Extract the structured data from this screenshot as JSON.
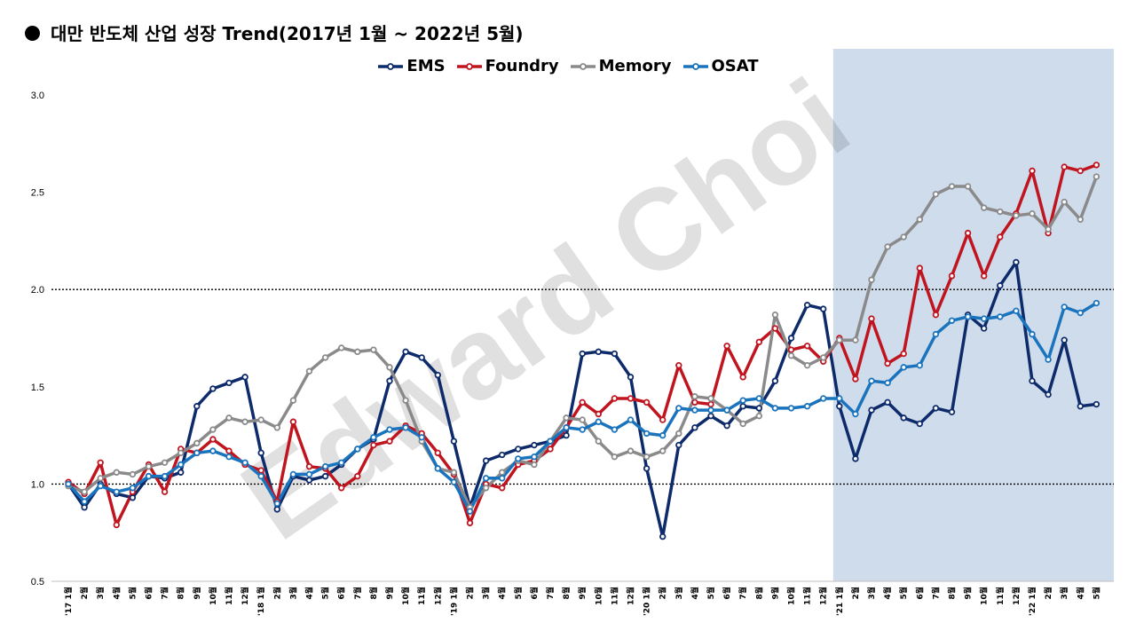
{
  "title": "대만 반도체 산업 성장 Trend(2017년 1월 ~ 2022년 5월)",
  "watermark": "Edward Choi",
  "colors": {
    "EMS": "#0d2a6b",
    "Foundry": "#c0141f",
    "Memory": "#8a8a8a",
    "OSAT": "#1a74bd",
    "highlight": "#cfdcec"
  },
  "chart_data": {
    "type": "line",
    "ylim": [
      0.5,
      3.0
    ],
    "yticks": [
      "3.0",
      "2.5",
      "2.0",
      "1.5",
      "1.0",
      "0.5"
    ],
    "reference_lines": [
      1.0,
      2.0
    ],
    "highlight_region": {
      "from": "'21 1월",
      "to": "'22 5월"
    },
    "legend_position": "top-center",
    "categories": [
      "'17 1월",
      "2월",
      "3월",
      "4월",
      "5월",
      "6월",
      "7월",
      "8월",
      "9월",
      "10월",
      "11월",
      "12월",
      "'18 1월",
      "2월",
      "3월",
      "4월",
      "5월",
      "6월",
      "7월",
      "8월",
      "9월",
      "10월",
      "11월",
      "12월",
      "'19 1월",
      "2월",
      "3월",
      "4월",
      "5월",
      "6월",
      "7월",
      "8월",
      "9월",
      "10월",
      "11월",
      "12월",
      "'20 1월",
      "2월",
      "3월",
      "4월",
      "5월",
      "6월",
      "7월",
      "8월",
      "9월",
      "10월",
      "11월",
      "12월",
      "'21 1월",
      "2월",
      "3월",
      "4월",
      "5월",
      "6월",
      "7월",
      "8월",
      "9월",
      "10월",
      "11월",
      "12월",
      "'22 1월",
      "2월",
      "3월",
      "4월",
      "5월"
    ],
    "series": [
      {
        "name": "EMS",
        "values": [
          1.0,
          0.88,
          1.0,
          0.95,
          0.93,
          1.04,
          1.03,
          1.06,
          1.4,
          1.49,
          1.52,
          1.55,
          1.16,
          0.87,
          1.04,
          1.02,
          1.04,
          1.1,
          1.18,
          1.23,
          1.53,
          1.68,
          1.65,
          1.56,
          1.22,
          0.88,
          1.12,
          1.15,
          1.18,
          1.2,
          1.22,
          1.25,
          1.67,
          1.68,
          1.67,
          1.55,
          1.08,
          0.73,
          1.2,
          1.29,
          1.35,
          1.3,
          1.4,
          1.39,
          1.53,
          1.75,
          1.92,
          1.9,
          1.4,
          1.13,
          1.38,
          1.42,
          1.34,
          1.31,
          1.39,
          1.37,
          1.87,
          1.8,
          2.02,
          2.14,
          1.53,
          1.46,
          1.74,
          1.4,
          1.41
        ]
      },
      {
        "name": "Foundry",
        "values": [
          1.01,
          0.95,
          1.11,
          0.79,
          0.96,
          1.1,
          0.96,
          1.18,
          1.16,
          1.23,
          1.17,
          1.1,
          1.07,
          0.91,
          1.32,
          1.09,
          1.08,
          0.98,
          1.04,
          1.2,
          1.22,
          1.3,
          1.26,
          1.16,
          1.05,
          0.8,
          1.0,
          0.98,
          1.1,
          1.12,
          1.18,
          1.29,
          1.42,
          1.36,
          1.44,
          1.44,
          1.42,
          1.33,
          1.61,
          1.42,
          1.41,
          1.71,
          1.55,
          1.73,
          1.8,
          1.69,
          1.71,
          1.63,
          1.75,
          1.54,
          1.85,
          1.62,
          1.67,
          2.11,
          1.87,
          2.07,
          2.29,
          2.07,
          2.27,
          2.39,
          2.61,
          2.29,
          2.63,
          2.61,
          2.64
        ]
      },
      {
        "name": "Memory",
        "values": [
          0.99,
          0.96,
          1.03,
          1.06,
          1.05,
          1.09,
          1.11,
          1.16,
          1.21,
          1.28,
          1.34,
          1.32,
          1.33,
          1.29,
          1.43,
          1.58,
          1.65,
          1.7,
          1.68,
          1.69,
          1.6,
          1.43,
          1.22,
          1.08,
          1.06,
          0.88,
          0.98,
          1.06,
          1.12,
          1.1,
          1.22,
          1.34,
          1.33,
          1.22,
          1.14,
          1.17,
          1.14,
          1.17,
          1.26,
          1.45,
          1.44,
          1.38,
          1.31,
          1.35,
          1.87,
          1.66,
          1.61,
          1.65,
          1.74,
          1.74,
          2.05,
          2.22,
          2.27,
          2.36,
          2.49,
          2.53,
          2.53,
          2.42,
          2.4,
          2.38,
          2.39,
          2.31,
          2.45,
          2.36,
          2.58
        ]
      },
      {
        "name": "OSAT",
        "values": [
          1.0,
          0.91,
          0.99,
          0.96,
          0.98,
          1.04,
          1.04,
          1.1,
          1.16,
          1.17,
          1.14,
          1.11,
          1.04,
          0.9,
          1.05,
          1.05,
          1.09,
          1.11,
          1.18,
          1.24,
          1.28,
          1.29,
          1.24,
          1.08,
          1.01,
          0.86,
          1.03,
          1.03,
          1.13,
          1.14,
          1.22,
          1.29,
          1.28,
          1.32,
          1.28,
          1.33,
          1.26,
          1.25,
          1.39,
          1.38,
          1.38,
          1.38,
          1.43,
          1.44,
          1.39,
          1.39,
          1.4,
          1.44,
          1.44,
          1.36,
          1.53,
          1.52,
          1.6,
          1.61,
          1.77,
          1.84,
          1.86,
          1.85,
          1.86,
          1.89,
          1.77,
          1.64,
          1.91,
          1.88,
          1.93
        ]
      }
    ]
  }
}
